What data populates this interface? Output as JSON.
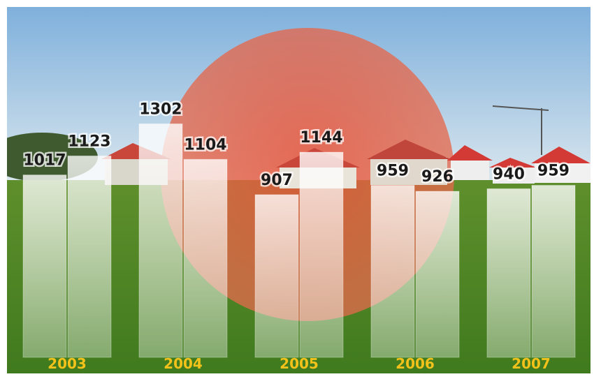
{
  "chart_data": {
    "type": "bar",
    "categories": [
      "2003",
      "2004",
      "2005",
      "2006",
      "2007"
    ],
    "series": [
      {
        "color": "#ffffff",
        "values": [
          1017,
          1302,
          907,
          959,
          940
        ]
      },
      {
        "color": "#ffffff",
        "values": [
          1123,
          1104,
          1144,
          926,
          959
        ]
      }
    ]
  }
}
